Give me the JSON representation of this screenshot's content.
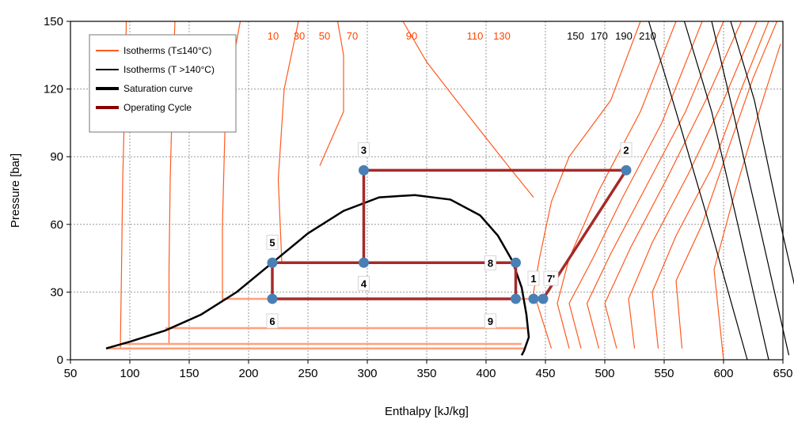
{
  "chart_data": {
    "type": "line",
    "title": "",
    "xlabel": "Enthalpy [kJ/kg]",
    "ylabel": "Pressure [bar]",
    "xlim": [
      50,
      650
    ],
    "ylim": [
      0,
      150
    ],
    "xticks": [
      "50",
      "100",
      "150",
      "200",
      "250",
      "300",
      "350",
      "400",
      "450",
      "500",
      "550",
      "600",
      "650"
    ],
    "yticks": [
      "0",
      "30",
      "60",
      "90",
      "120",
      "150"
    ],
    "grid": true,
    "legend_position": "top-left",
    "legend": [
      {
        "label": "Isotherms (T≤140°C)",
        "color": "#ff5a1e"
      },
      {
        "label": "Isotherms (T >140°C)",
        "color": "#000000"
      },
      {
        "label": "Saturation curve",
        "color": "#000000"
      },
      {
        "label": "Operating Cycle",
        "color": "#8b0000"
      }
    ],
    "isotherm_labels": [
      "10",
      "30",
      "50",
      "70",
      "90",
      "110",
      "130",
      "150",
      "170",
      "190",
      "210"
    ],
    "saturation_curve": {
      "x": [
        80,
        100,
        130,
        160,
        190,
        220,
        250,
        280,
        310,
        340,
        370,
        395,
        410,
        422,
        430,
        434,
        436,
        432,
        430
      ],
      "y": [
        5,
        8,
        13,
        20,
        30,
        43,
        56,
        66,
        72,
        73,
        71,
        64,
        55,
        44,
        32,
        20,
        10,
        4,
        2
      ]
    },
    "cycle": {
      "points": [
        {
          "label": "1",
          "h": 440,
          "p": 27
        },
        {
          "label": "7'",
          "h": 448,
          "p": 27
        },
        {
          "label": "2",
          "h": 518,
          "p": 84
        },
        {
          "label": "3",
          "h": 297,
          "p": 84
        },
        {
          "label": "4",
          "h": 297,
          "p": 43
        },
        {
          "label": "5",
          "h": 220,
          "p": 43
        },
        {
          "label": "6",
          "h": 220,
          "p": 27
        },
        {
          "label": "8",
          "h": 425,
          "p": 43
        },
        {
          "label": "9",
          "h": 425,
          "p": 27
        }
      ],
      "path_order": [
        "1",
        "7'",
        "2",
        "3",
        "4",
        "8",
        "9",
        "6",
        "5",
        "4"
      ]
    }
  }
}
